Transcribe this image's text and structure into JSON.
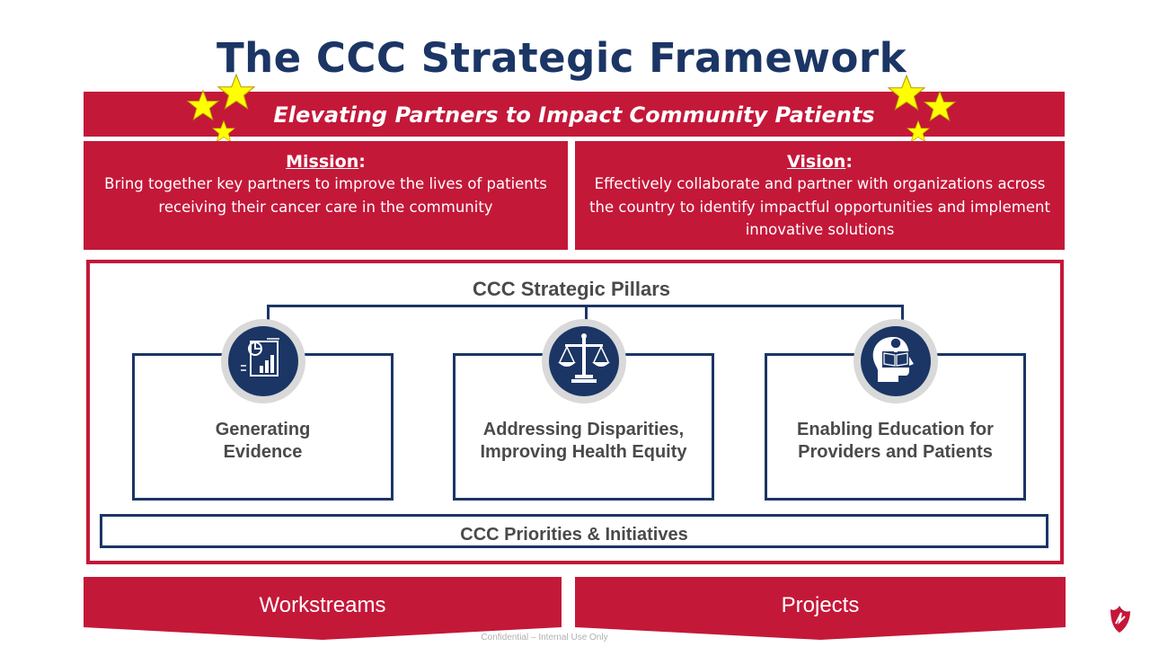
{
  "slide": {
    "title": "The CCC Strategic Framework",
    "banner": "Elevating Partners to Impact Community Patients",
    "mission": {
      "heading": "Mission",
      "text": "Bring together key partners to improve the lives of patients receiving their cancer care in the community"
    },
    "vision": {
      "heading": "Vision",
      "text": "Effectively collaborate and partner with organizations across the country to identify impactful opportunities and implement innovative solutions"
    },
    "pillars_title": "CCC Strategic Pillars",
    "pillars": [
      {
        "label_line1": "Generating",
        "label_line2": "Evidence",
        "icon": "evidence-report-icon"
      },
      {
        "label_line1": "Addressing Disparities,",
        "label_line2": "Improving Health Equity",
        "icon": "scales-of-justice-icon"
      },
      {
        "label_line1": "Enabling Education for",
        "label_line2": "Providers and Patients",
        "icon": "head-with-lightbulb-icon"
      }
    ],
    "priorities": "CCC Priorities & Initiatives",
    "bottom": {
      "left": "Workstreams",
      "right": "Projects"
    },
    "footer": "Confidential – Internal Use Only"
  },
  "colors": {
    "brand_red": "#c41839",
    "navy": "#1b3565",
    "gray_text": "#4a4a4a",
    "star_yellow": "#ffff00"
  }
}
